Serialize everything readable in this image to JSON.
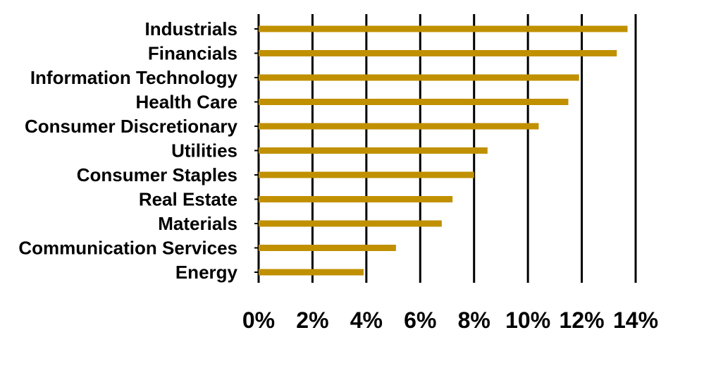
{
  "chart_data": {
    "type": "bar",
    "orientation": "horizontal",
    "categories": [
      "Industrials",
      "Financials",
      "Information Technology",
      "Health Care",
      "Consumer Discretionary",
      "Utilities",
      "Consumer Staples",
      "Real Estate",
      "Materials",
      "Communication Services",
      "Energy"
    ],
    "values": [
      13.7,
      13.3,
      11.9,
      11.5,
      10.4,
      8.5,
      8.0,
      7.2,
      6.8,
      5.1,
      3.9
    ],
    "xlim": [
      0,
      14
    ],
    "x_ticks": [
      0,
      2,
      4,
      6,
      8,
      10,
      12,
      14
    ],
    "x_tick_labels": [
      "0%",
      "2%",
      "4%",
      "6%",
      "8%",
      "10%",
      "12%",
      "14%"
    ],
    "title": "",
    "xlabel": "",
    "ylabel": "",
    "grid": "vertical",
    "legend": "none",
    "bar_color": "#C09000",
    "grid_color": "#000000"
  }
}
